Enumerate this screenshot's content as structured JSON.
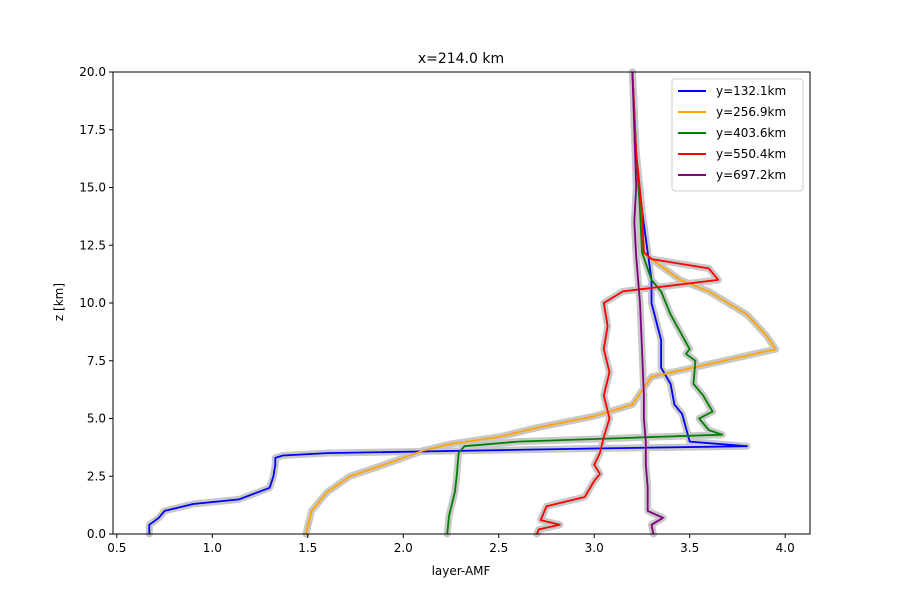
{
  "chart_data": {
    "type": "line",
    "title": "x=214.0 km",
    "xlabel": "layer-AMF",
    "ylabel": "z [km]",
    "xlim": [
      0.48,
      4.13
    ],
    "ylim": [
      0,
      20
    ],
    "xticks": [
      "0.5",
      "1.0",
      "1.5",
      "2.0",
      "2.5",
      "3.0",
      "3.5",
      "4.0"
    ],
    "xtick_values": [
      0.5,
      1.0,
      1.5,
      2.0,
      2.5,
      3.0,
      3.5,
      4.0
    ],
    "yticks": [
      "0.0",
      "2.5",
      "5.0",
      "7.5",
      "10.0",
      "12.5",
      "15.0",
      "17.5",
      "20.0"
    ],
    "ytick_values": [
      0,
      2.5,
      5,
      7.5,
      10,
      12.5,
      15,
      17.5,
      20
    ],
    "grid": false,
    "legend_position": "top-right",
    "uncertainty_band_color": "#c8c8c8",
    "series": [
      {
        "name": "y=132.1km",
        "color": "#0000ff",
        "x": [
          0.67,
          0.67,
          0.72,
          0.75,
          0.9,
          1.14,
          1.3,
          1.32,
          1.33,
          1.33,
          1.37,
          1.6,
          3.0,
          3.8,
          3.5,
          3.48,
          3.46,
          3.42,
          3.4,
          3.35,
          3.35,
          3.3,
          3.3,
          3.25,
          3.22,
          3.2
        ],
        "y": [
          0.0,
          0.4,
          0.7,
          1.0,
          1.3,
          1.5,
          2.0,
          2.5,
          3.0,
          3.3,
          3.4,
          3.5,
          3.7,
          3.8,
          4.0,
          4.6,
          5.2,
          5.6,
          6.5,
          7.2,
          8.4,
          10.0,
          11.0,
          14.0,
          16.5,
          20.0
        ]
      },
      {
        "name": "y=256.9km",
        "color": "#ffa500",
        "x": [
          1.49,
          1.52,
          1.6,
          1.72,
          1.9,
          2.0,
          2.1,
          2.25,
          2.5,
          2.7,
          3.0,
          3.2,
          3.3,
          3.95,
          3.9,
          3.8,
          3.6,
          3.45,
          3.25,
          3.25,
          3.22,
          3.2
        ],
        "y": [
          0.0,
          1.0,
          1.8,
          2.5,
          3.0,
          3.3,
          3.6,
          3.9,
          4.2,
          4.6,
          5.1,
          5.6,
          6.8,
          8.0,
          8.6,
          9.5,
          10.5,
          11.0,
          12.2,
          14.0,
          16.5,
          20.0
        ]
      },
      {
        "name": "y=403.6km",
        "color": "#008000",
        "x": [
          2.23,
          2.24,
          2.27,
          2.28,
          2.29,
          2.32,
          2.6,
          3.67,
          3.6,
          3.55,
          3.62,
          3.57,
          3.52,
          3.53,
          3.48,
          3.5,
          3.4,
          3.35,
          3.3,
          3.25,
          3.24,
          3.22,
          3.2
        ],
        "y": [
          0.0,
          0.8,
          1.8,
          2.5,
          3.5,
          3.8,
          4.0,
          4.3,
          4.5,
          5.0,
          5.3,
          6.0,
          6.5,
          7.5,
          7.8,
          8.0,
          9.5,
          10.5,
          11.0,
          12.2,
          14.0,
          16.5,
          20.0
        ]
      },
      {
        "name": "y=550.4km",
        "color": "#ff0000",
        "x": [
          2.7,
          2.71,
          2.82,
          2.72,
          2.75,
          2.95,
          3.0,
          3.03,
          3.0,
          3.03,
          3.05,
          3.08,
          3.05,
          3.08,
          3.05,
          3.07,
          3.05,
          3.15,
          3.65,
          3.6,
          3.3,
          3.26,
          3.25,
          3.22,
          3.2
        ],
        "y": [
          0.0,
          0.2,
          0.4,
          0.6,
          1.2,
          1.6,
          2.3,
          2.6,
          3.0,
          3.5,
          4.2,
          5.0,
          6.0,
          7.0,
          8.0,
          9.0,
          10.0,
          10.5,
          11.0,
          11.5,
          11.9,
          12.2,
          14.0,
          16.5,
          20.0
        ]
      },
      {
        "name": "y=697.2km",
        "color": "#800080",
        "x": [
          3.31,
          3.3,
          3.36,
          3.28,
          3.28,
          3.27,
          3.27,
          3.26,
          3.26,
          3.25,
          3.24,
          3.22,
          3.21,
          3.22,
          3.21,
          3.2
        ],
        "y": [
          0.0,
          0.4,
          0.7,
          1.0,
          2.0,
          3.0,
          4.0,
          5.0,
          6.0,
          8.0,
          10.0,
          12.0,
          13.5,
          15.0,
          17.5,
          20.0
        ]
      }
    ]
  }
}
